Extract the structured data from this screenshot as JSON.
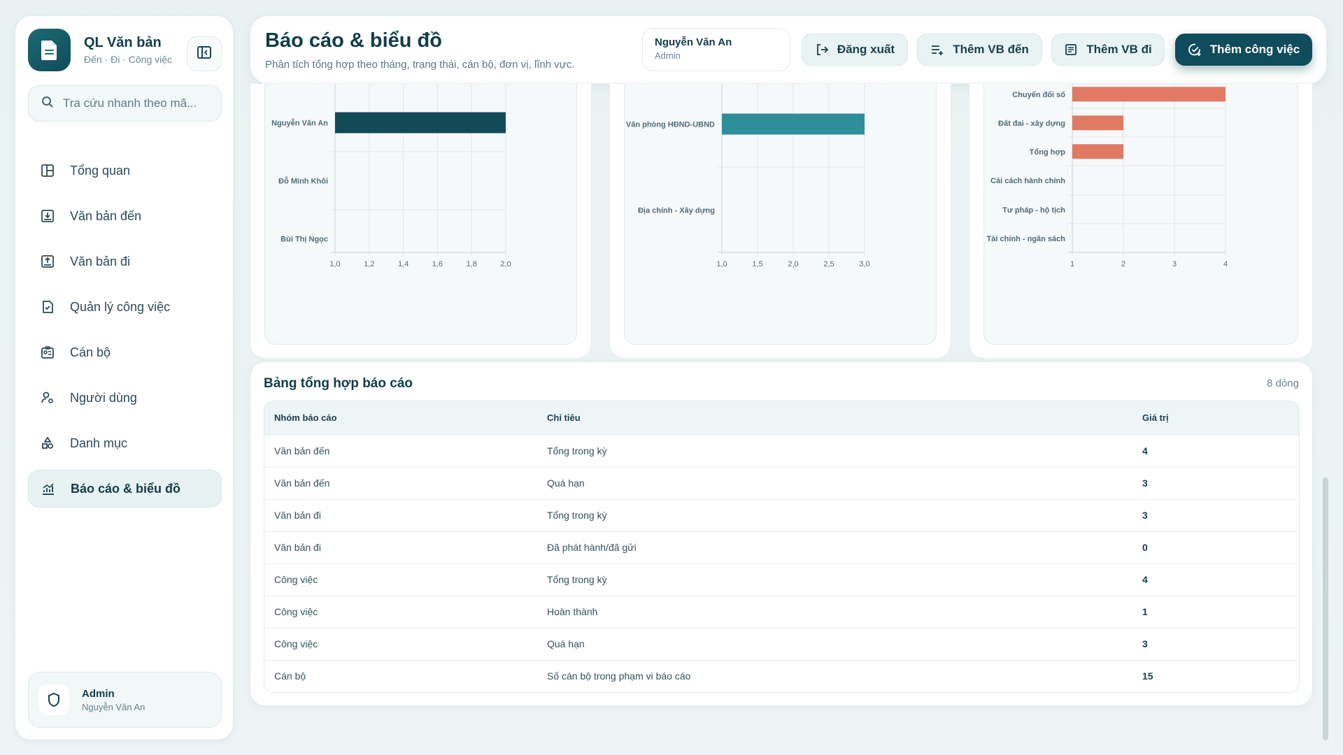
{
  "app": {
    "title": "QL Văn bản",
    "subtitle": "Đến · Đi · Công việc"
  },
  "search": {
    "placeholder": "Tra cứu nhanh theo mã..."
  },
  "sidebar": {
    "items": [
      {
        "label": "Tổng quan",
        "icon": "dashboard-icon",
        "active": false
      },
      {
        "label": "Văn bản đến",
        "icon": "inbox-download-icon",
        "active": false
      },
      {
        "label": "Văn bản đi",
        "icon": "outbox-upload-icon",
        "active": false
      },
      {
        "label": "Quản lý công việc",
        "icon": "task-document-icon",
        "active": false
      },
      {
        "label": "Cán bộ",
        "icon": "staff-id-icon",
        "active": false
      },
      {
        "label": "Người dùng",
        "icon": "user-settings-icon",
        "active": false
      },
      {
        "label": "Danh mục",
        "icon": "category-shapes-icon",
        "active": false
      },
      {
        "label": "Báo cáo & biểu đồ",
        "icon": "chart-icon",
        "active": true
      }
    ]
  },
  "account": {
    "name": "Admin",
    "full_name": "Nguyễn Văn An"
  },
  "header": {
    "title": "Báo cáo & biểu đồ",
    "subtitle": "Phân tích tổng hợp theo tháng, trạng thái, cán bộ, đơn vị, lĩnh vực.",
    "user_name": "Nguyễn Văn An",
    "user_role": "Admin",
    "buttons": {
      "logout": "Đăng xuất",
      "add_incoming": "Thêm VB đến",
      "add_outgoing": "Thêm VB đi",
      "add_task": "Thêm công việc"
    }
  },
  "colors": {
    "primary": "#0f4c5c",
    "staff_bar": "#134a5a",
    "unit_bar": "#2e8f9b",
    "field_bar": "#e07a62",
    "grid": "#dfe6e8"
  },
  "chart_data": [
    {
      "type": "bar",
      "orientation": "horizontal",
      "categories": [
        "Nguyễn Văn An",
        "Đỗ Minh Khôi",
        "Bùi Thị Ngọc"
      ],
      "values": [
        2,
        1,
        1
      ],
      "xlim": [
        1,
        2
      ],
      "ticks": [
        "1,0",
        "1,2",
        "1,4",
        "1,6",
        "1,8",
        "2,0"
      ],
      "grid": true
    },
    {
      "type": "bar",
      "orientation": "horizontal",
      "categories": [
        "Văn phòng HĐND-UBND",
        "Địa chính - Xây dựng"
      ],
      "values": [
        3,
        1
      ],
      "xlim": [
        1,
        3
      ],
      "ticks": [
        "1,0",
        "1,5",
        "2,0",
        "2,5",
        "3,0"
      ],
      "grid": true
    },
    {
      "type": "bar",
      "orientation": "horizontal",
      "categories": [
        "Chuyển đổi số",
        "Đất đai - xây dựng",
        "Tổng hợp",
        "Cải cách hành chính",
        "Tư pháp - hộ tịch",
        "Tài chính - ngân sách"
      ],
      "values": [
        4,
        2,
        2,
        1,
        1,
        1
      ],
      "xlim": [
        1,
        4
      ],
      "ticks": [
        "1",
        "2",
        "3",
        "4"
      ],
      "grid": true
    }
  ],
  "summary_table": {
    "title": "Bảng tổng hợp báo cáo",
    "row_count": "8 dòng",
    "columns": [
      "Nhóm báo cáo",
      "Chỉ tiêu",
      "Giá trị"
    ],
    "rows": [
      [
        "Văn bản đến",
        "Tổng trong kỳ",
        "4"
      ],
      [
        "Văn bản đến",
        "Quá hạn",
        "3"
      ],
      [
        "Văn bản đi",
        "Tổng trong kỳ",
        "3"
      ],
      [
        "Văn bản đi",
        "Đã phát hành/đã gửi",
        "0"
      ],
      [
        "Công việc",
        "Tổng trong kỳ",
        "4"
      ],
      [
        "Công việc",
        "Hoàn thành",
        "1"
      ],
      [
        "Công việc",
        "Quá hạn",
        "3"
      ],
      [
        "Cán bộ",
        "Số cán bộ trong phạm vi báo cáo",
        "15"
      ]
    ]
  }
}
